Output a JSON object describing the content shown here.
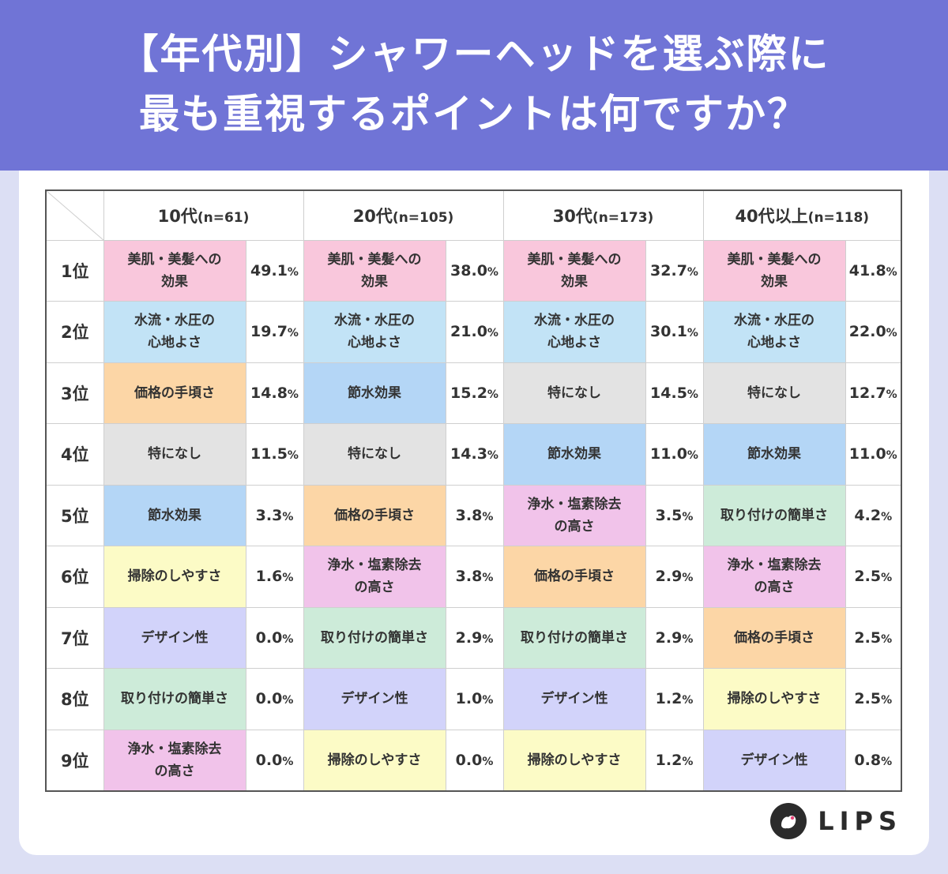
{
  "title": {
    "line1": "【年代別】シャワーヘッドを選ぶ際に",
    "line2": "最も重視するポイントは何ですか？"
  },
  "chart_data": {
    "type": "table",
    "columns": [
      {
        "label": "10代",
        "n": "(n=61)"
      },
      {
        "label": "20代",
        "n": "(n=105)"
      },
      {
        "label": "30代",
        "n": "(n=173)"
      },
      {
        "label": "40代以上",
        "n": "(n=118)"
      }
    ],
    "ranks": [
      "1位",
      "2位",
      "3位",
      "4位",
      "5位",
      "6位",
      "7位",
      "8位",
      "9位"
    ],
    "unit": "%",
    "rows": [
      [
        {
          "item": "美肌・美髪への\n効果",
          "value": "49.1",
          "color": "#f9c7dc"
        },
        {
          "item": "美肌・美髪への\n効果",
          "value": "38.0",
          "color": "#f9c7dc"
        },
        {
          "item": "美肌・美髪への\n効果",
          "value": "32.7",
          "color": "#f9c7dc"
        },
        {
          "item": "美肌・美髪への\n効果",
          "value": "41.8",
          "color": "#f9c7dc"
        }
      ],
      [
        {
          "item": "水流・水圧の\n心地よさ",
          "value": "19.7",
          "color": "#c2e3f6"
        },
        {
          "item": "水流・水圧の\n心地よさ",
          "value": "21.0",
          "color": "#c2e3f6"
        },
        {
          "item": "水流・水圧の\n心地よさ",
          "value": "30.1",
          "color": "#c2e3f6"
        },
        {
          "item": "水流・水圧の\n心地よさ",
          "value": "22.0",
          "color": "#c2e3f6"
        }
      ],
      [
        {
          "item": "価格の手頃さ",
          "value": "14.8",
          "color": "#fcd6a6"
        },
        {
          "item": "節水効果",
          "value": "15.2",
          "color": "#b4d6f6"
        },
        {
          "item": "特になし",
          "value": "14.5",
          "color": "#e3e3e3"
        },
        {
          "item": "特になし",
          "value": "12.7",
          "color": "#e3e3e3"
        }
      ],
      [
        {
          "item": "特になし",
          "value": "11.5",
          "color": "#e3e3e3"
        },
        {
          "item": "特になし",
          "value": "14.3",
          "color": "#e3e3e3"
        },
        {
          "item": "節水効果",
          "value": "11.0",
          "color": "#b4d6f6"
        },
        {
          "item": "節水効果",
          "value": "11.0",
          "color": "#b4d6f6"
        }
      ],
      [
        {
          "item": "節水効果",
          "value": "3.3",
          "color": "#b4d6f6"
        },
        {
          "item": "価格の手頃さ",
          "value": "3.8",
          "color": "#fcd6a6"
        },
        {
          "item": "浄水・塩素除去\nの高さ",
          "value": "3.5",
          "color": "#f1c3ea"
        },
        {
          "item": "取り付けの簡単さ",
          "value": "4.2",
          "color": "#cdebd9"
        }
      ],
      [
        {
          "item": "掃除のしやすさ",
          "value": "1.6",
          "color": "#fcfbc6"
        },
        {
          "item": "浄水・塩素除去\nの高さ",
          "value": "3.8",
          "color": "#f1c3ea"
        },
        {
          "item": "価格の手頃さ",
          "value": "2.9",
          "color": "#fcd6a6"
        },
        {
          "item": "浄水・塩素除去\nの高さ",
          "value": "2.5",
          "color": "#f1c3ea"
        }
      ],
      [
        {
          "item": "デザイン性",
          "value": "0.0",
          "color": "#d2d3fa"
        },
        {
          "item": "取り付けの簡単さ",
          "value": "2.9",
          "color": "#cdebd9"
        },
        {
          "item": "取り付けの簡単さ",
          "value": "2.9",
          "color": "#cdebd9"
        },
        {
          "item": "価格の手頃さ",
          "value": "2.5",
          "color": "#fcd6a6"
        }
      ],
      [
        {
          "item": "取り付けの簡単さ",
          "value": "0.0",
          "color": "#cdebd9"
        },
        {
          "item": "デザイン性",
          "value": "1.0",
          "color": "#d2d3fa"
        },
        {
          "item": "デザイン性",
          "value": "1.2",
          "color": "#d2d3fa"
        },
        {
          "item": "掃除のしやすさ",
          "value": "2.5",
          "color": "#fcfbc6"
        }
      ],
      [
        {
          "item": "浄水・塩素除去\nの高さ",
          "value": "0.0",
          "color": "#f1c3ea"
        },
        {
          "item": "掃除のしやすさ",
          "value": "0.0",
          "color": "#fcfbc6"
        },
        {
          "item": "掃除のしやすさ",
          "value": "1.2",
          "color": "#fcfbc6"
        },
        {
          "item": "デザイン性",
          "value": "0.8",
          "color": "#d2d3fa"
        }
      ]
    ]
  },
  "logo": {
    "text": "LIPS",
    "icon": "lips-logo-icon"
  }
}
